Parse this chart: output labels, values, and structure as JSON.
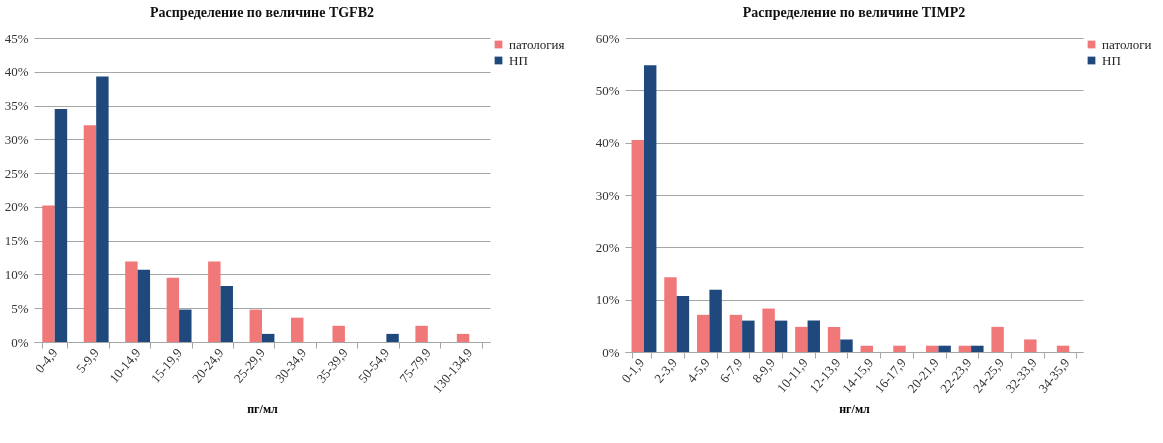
{
  "chart_data": [
    {
      "type": "bar",
      "title": "Распределение по величине TGFB2",
      "xlabel": "пг/мл",
      "categories": [
        "0-4,9",
        "5-9,9",
        "10-14,9",
        "15-19,9",
        "20-24,9",
        "25-29,9",
        "30-34,9",
        "35-39,9",
        "50-54,9",
        "75-79,9",
        "130-134,9"
      ],
      "series": [
        {
          "name": "патология",
          "color": "#f07878",
          "values": [
            20.2,
            32.1,
            11.9,
            9.5,
            11.9,
            4.8,
            3.6,
            2.4,
            0,
            2.4,
            1.2
          ]
        },
        {
          "name": "НП",
          "color": "#1f497d",
          "values": [
            34.5,
            39.3,
            10.7,
            4.8,
            8.3,
            1.2,
            0,
            0,
            1.2,
            0,
            0
          ]
        }
      ],
      "ylim": [
        0,
        45
      ],
      "yticks": [
        {
          "value": 0,
          "label": "0%"
        },
        {
          "value": 5,
          "label": "5%"
        },
        {
          "value": 10,
          "label": "10%"
        },
        {
          "value": 15,
          "label": "15%"
        },
        {
          "value": 20,
          "label": "20%"
        },
        {
          "value": 25,
          "label": "25%"
        },
        {
          "value": 30,
          "label": "30%"
        },
        {
          "value": 35,
          "label": "35%"
        },
        {
          "value": 40,
          "label": "40%"
        },
        {
          "value": 45,
          "label": "45%"
        }
      ],
      "grid": "y",
      "legend": "right"
    },
    {
      "type": "bar",
      "title": "Распределение по величине TIMP2",
      "xlabel": "нг/мл",
      "categories": [
        "0-1,9",
        "2-3,9",
        "4-5,9",
        "6-7,9",
        "8-9,9",
        "10-11,9",
        "12-13,9",
        "14-15,9",
        "16-17,9",
        "20-21,9",
        "22-23,9",
        "24-25,9",
        "32-33,9",
        "34-35,9"
      ],
      "series": [
        {
          "name": "патологи",
          "color": "#f07878",
          "values": [
            40.5,
            14.3,
            7.1,
            7.1,
            8.3,
            4.8,
            4.8,
            1.2,
            1.2,
            1.2,
            1.2,
            4.8,
            2.4,
            1.2
          ]
        },
        {
          "name": "НП",
          "color": "#1f497d",
          "values": [
            54.8,
            10.7,
            11.9,
            6.0,
            6.0,
            6.0,
            2.4,
            0,
            0,
            1.2,
            1.2,
            0,
            0,
            0
          ]
        }
      ],
      "ylim": [
        0,
        60
      ],
      "yticks": [
        {
          "value": 0,
          "label": "0%"
        },
        {
          "value": 10,
          "label": "10%"
        },
        {
          "value": 20,
          "label": "20%"
        },
        {
          "value": 30,
          "label": "30%"
        },
        {
          "value": 40,
          "label": "40%"
        },
        {
          "value": 50,
          "label": "50%"
        },
        {
          "value": 60,
          "label": "60%"
        }
      ],
      "grid": "y",
      "legend": "right"
    }
  ]
}
